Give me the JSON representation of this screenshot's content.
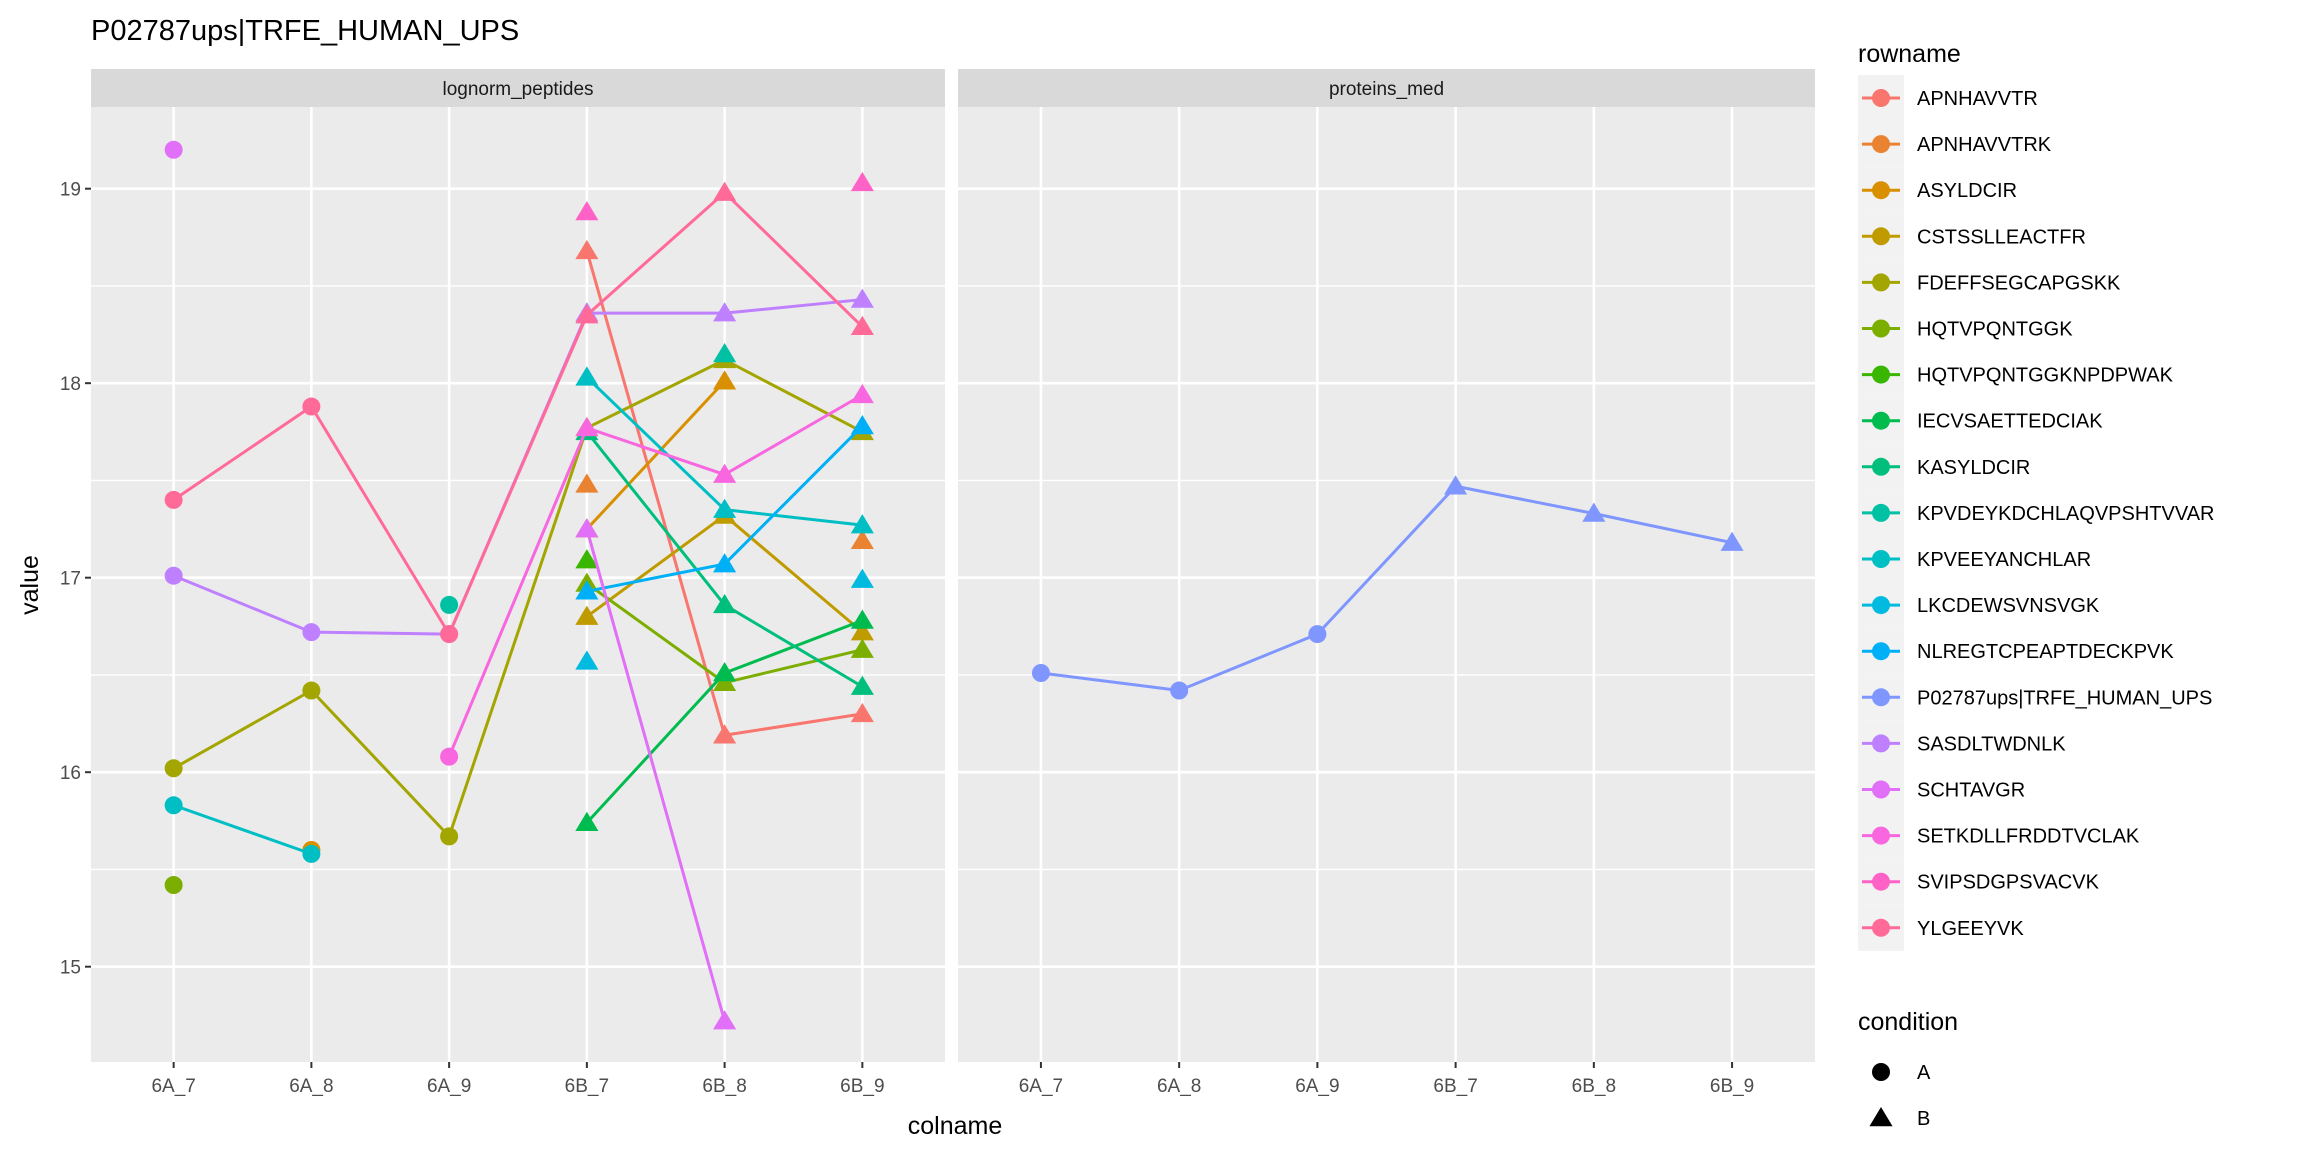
{
  "chart_data": {
    "type": "line",
    "title": "P02787ups|TRFE_HUMAN_UPS",
    "xlabel": "colname",
    "ylabel": "value",
    "categories": [
      "6A_7",
      "6A_8",
      "6A_9",
      "6B_7",
      "6B_8",
      "6B_9"
    ],
    "condition_by_category": [
      "A",
      "A",
      "A",
      "B",
      "B",
      "B"
    ],
    "ylim": [
      14.51,
      19.42
    ],
    "yticks": [
      15,
      16,
      17,
      18,
      19
    ],
    "grid": true,
    "legend_position": "right",
    "legend_title": "rowname",
    "shape_legend": {
      "title": "condition",
      "items": [
        {
          "label": "A",
          "shape": "circle"
        },
        {
          "label": "B",
          "shape": "triangle"
        }
      ]
    },
    "facets": [
      {
        "strip": "lognorm_peptides",
        "series": [
          {
            "name": "APNHAVVTR",
            "color": "#F8766D",
            "values": [
              null,
              null,
              null,
              18.68,
              16.19,
              16.3
            ]
          },
          {
            "name": "APNHAVVTRK",
            "color": "#EA8331",
            "values": [
              null,
              null,
              null,
              17.48,
              null,
              17.19
            ]
          },
          {
            "name": "ASYLDCIR",
            "color": "#D89000",
            "values": [
              null,
              15.6,
              null,
              17.25,
              18.01,
              null
            ]
          },
          {
            "name": "CSTSSLLEACTFR",
            "color": "#C09B00",
            "values": [
              null,
              null,
              null,
              16.8,
              17.32,
              16.72
            ]
          },
          {
            "name": "FDEFFSEGCAPGSKK",
            "color": "#A3A500",
            "values": [
              16.02,
              16.42,
              15.67,
              17.77,
              18.12,
              17.75
            ]
          },
          {
            "name": "HQTVPQNTGGK",
            "color": "#7CAE00",
            "values": [
              15.42,
              null,
              null,
              16.97,
              16.46,
              16.63
            ]
          },
          {
            "name": "HQTVPQNTGGKNPDPWAK",
            "color": "#39B600",
            "values": [
              null,
              null,
              null,
              17.09,
              null,
              null
            ]
          },
          {
            "name": "IECVSAETTEDCIAK",
            "color": "#00BB4E",
            "values": [
              null,
              null,
              null,
              15.74,
              16.51,
              16.78
            ]
          },
          {
            "name": "KASYLDCIR",
            "color": "#00BF7D",
            "values": [
              null,
              null,
              null,
              17.75,
              16.86,
              16.44
            ]
          },
          {
            "name": "KPVDEYKDCHLAQVPSHTVVAR",
            "color": "#00C1A3",
            "values": [
              null,
              null,
              16.86,
              null,
              18.15,
              null
            ]
          },
          {
            "name": "KPVEEYANCHLAR",
            "color": "#00BFC4",
            "values": [
              15.83,
              15.58,
              null,
              18.03,
              17.35,
              17.27
            ]
          },
          {
            "name": "LKCDEWSVNSVGK",
            "color": "#00BAE0",
            "values": [
              null,
              null,
              null,
              16.57,
              null,
              16.99
            ]
          },
          {
            "name": "NLREGTCPEAPTDECKPVK",
            "color": "#00B0F6",
            "values": [
              null,
              null,
              null,
              16.93,
              17.07,
              17.78
            ]
          },
          {
            "name": "P02787ups|TRFE_HUMAN_UPS",
            "color": "#7F96FF",
            "values": [
              null,
              null,
              null,
              null,
              null,
              null
            ]
          },
          {
            "name": "SASDLTWDNLK",
            "color": "#BF80FF",
            "values": [
              17.01,
              16.72,
              16.71,
              18.36,
              18.36,
              18.43
            ]
          },
          {
            "name": "SCHTAVGR",
            "color": "#E16FF7",
            "values": [
              19.2,
              null,
              null,
              17.25,
              14.72,
              null
            ]
          },
          {
            "name": "SETKDLLFRDDTVCLAK",
            "color": "#F866E0",
            "values": [
              null,
              null,
              16.08,
              17.77,
              17.53,
              17.94
            ]
          },
          {
            "name": "SVIPSDGPSVACVK",
            "color": "#FF62C6",
            "values": [
              null,
              null,
              null,
              18.88,
              null,
              19.03
            ]
          },
          {
            "name": "YLGEEYVK",
            "color": "#FF6A98",
            "values": [
              17.4,
              17.88,
              16.71,
              18.35,
              18.98,
              18.29
            ]
          }
        ]
      },
      {
        "strip": "proteins_med",
        "series": [
          {
            "name": "P02787ups|TRFE_HUMAN_UPS",
            "color": "#7F96FF",
            "values": [
              16.51,
              16.42,
              16.71,
              17.47,
              17.33,
              17.18
            ]
          }
        ]
      }
    ]
  }
}
